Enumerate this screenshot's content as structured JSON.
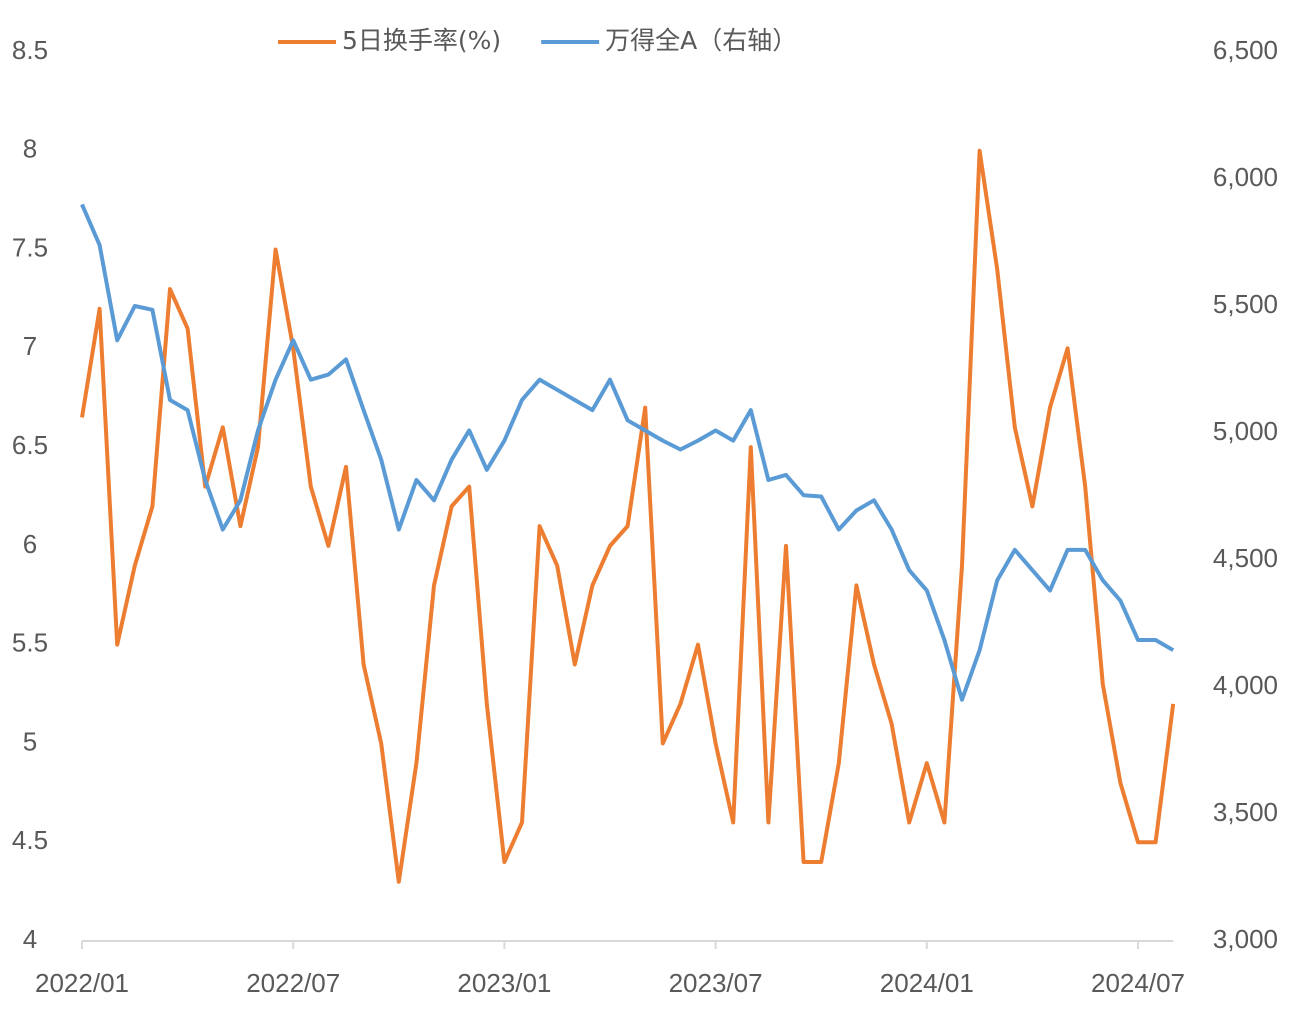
{
  "chart_data": {
    "type": "line",
    "categories": [
      "2022/01",
      null,
      null,
      null,
      null,
      null,
      null,
      null,
      null,
      null,
      null,
      null,
      "2022/07",
      null,
      null,
      null,
      null,
      null,
      null,
      null,
      null,
      null,
      null,
      null,
      "2023/01",
      null,
      null,
      null,
      null,
      null,
      null,
      null,
      null,
      null,
      null,
      null,
      "2023/07",
      null,
      null,
      null,
      null,
      null,
      null,
      null,
      null,
      null,
      null,
      null,
      "2024/01",
      null,
      null,
      null,
      null,
      null,
      null,
      null,
      null,
      null,
      null,
      null,
      "2024/07",
      null,
      null
    ],
    "series": [
      {
        "name": "5日换手率(%)",
        "color": "#ed7d31",
        "values": [
          6.65,
          7.2,
          5.5,
          5.9,
          6.2,
          7.3,
          7.1,
          6.3,
          6.6,
          6.1,
          6.5,
          7.5,
          7.0,
          6.3,
          6.0,
          6.4,
          5.4,
          5.0,
          4.3,
          4.9,
          5.8,
          6.2,
          6.3,
          5.2,
          4.4,
          4.6,
          6.1,
          5.9,
          5.4,
          5.8,
          6.0,
          6.1,
          6.7,
          5.0,
          5.2,
          5.5,
          5.0,
          4.6,
          6.5,
          4.6,
          6.0,
          4.4,
          4.4,
          4.9,
          5.8,
          5.4,
          5.1,
          4.6,
          4.9,
          4.6,
          5.9,
          8.0,
          7.4,
          6.6,
          6.2,
          6.7,
          7.0,
          6.3,
          5.3,
          4.8,
          4.5,
          4.5,
          5.2
        ]
      },
      {
        "name": "万得全A（右轴）",
        "color": "#5b9bd5",
        "axis": "y2",
        "values": [
          5900,
          5740,
          5365,
          5500,
          5485,
          5130,
          5090,
          4815,
          4620,
          4735,
          5010,
          5210,
          5365,
          5210,
          5230,
          5290,
          5090,
          4895,
          4620,
          4815,
          4735,
          4895,
          5010,
          4855,
          4970,
          5130,
          5210,
          5170,
          5130,
          5090,
          5210,
          5050,
          5010,
          4970,
          4935,
          4970,
          5010,
          4970,
          5090,
          4815,
          4835,
          4755,
          4750,
          4620,
          4695,
          4735,
          4620,
          4460,
          4380,
          4185,
          3950,
          4145,
          4420,
          4540,
          4460,
          4380,
          4540,
          4540,
          4420,
          4340,
          4185,
          4185,
          4145
        ]
      }
    ],
    "ylim": [
      4,
      8.5
    ],
    "yticks": [
      4,
      4.5,
      5,
      5.5,
      6,
      6.5,
      7,
      7.5,
      8,
      8.5
    ],
    "y2lim": [
      3000,
      6500
    ],
    "y2ticks": [
      {
        "value": 3000,
        "label": "3,000"
      },
      {
        "value": 3500,
        "label": "3,500"
      },
      {
        "value": 4000,
        "label": "4,000"
      },
      {
        "value": 4500,
        "label": "4,500"
      },
      {
        "value": 5000,
        "label": "5,000"
      },
      {
        "value": 5500,
        "label": "5,500"
      },
      {
        "value": 6000,
        "label": "6,000"
      },
      {
        "value": 6500,
        "label": "6,500"
      }
    ],
    "legend": "top",
    "grid": false
  }
}
